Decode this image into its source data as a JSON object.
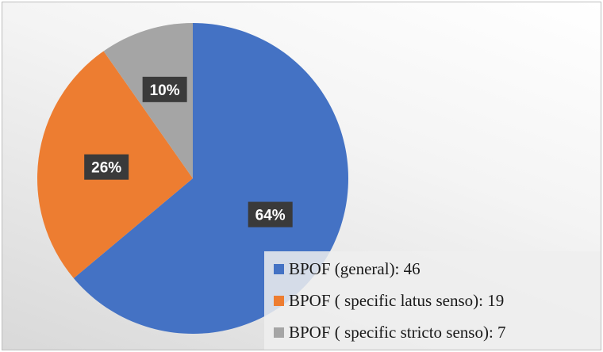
{
  "chart_data": {
    "type": "pie",
    "series": [
      {
        "name": "",
        "labels": [
          "BPOF (general): 46",
          "BPOF (  specific  latus senso): 19",
          "BPOF (  specific  stricto senso): 7"
        ],
        "values": [
          46,
          19,
          7
        ],
        "percent_labels": [
          "64%",
          "26%",
          "10%"
        ],
        "colors": [
          "#4472c4",
          "#ed7d31",
          "#a5a5a5"
        ]
      }
    ],
    "legend_position": "bottom-right",
    "label_style": "dark-box-white-text"
  }
}
